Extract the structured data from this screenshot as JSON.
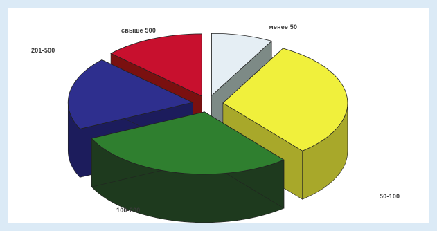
{
  "chart_data": {
    "type": "pie",
    "style": "3d-exploded",
    "title": "",
    "categories": [
      "менее 50",
      "50-100",
      "100-200",
      "201-500",
      "свыше 500"
    ],
    "values": [
      8,
      31,
      29,
      19,
      13
    ],
    "colors": [
      "#e5eef4",
      "#f0f03c",
      "#2f7f2f",
      "#2e2f8e",
      "#c8102e"
    ],
    "side_colors": [
      "#7d8a86",
      "#a8a82a",
      "#1e3a1e",
      "#1c1c5c",
      "#7a1010"
    ],
    "legend": "none"
  }
}
